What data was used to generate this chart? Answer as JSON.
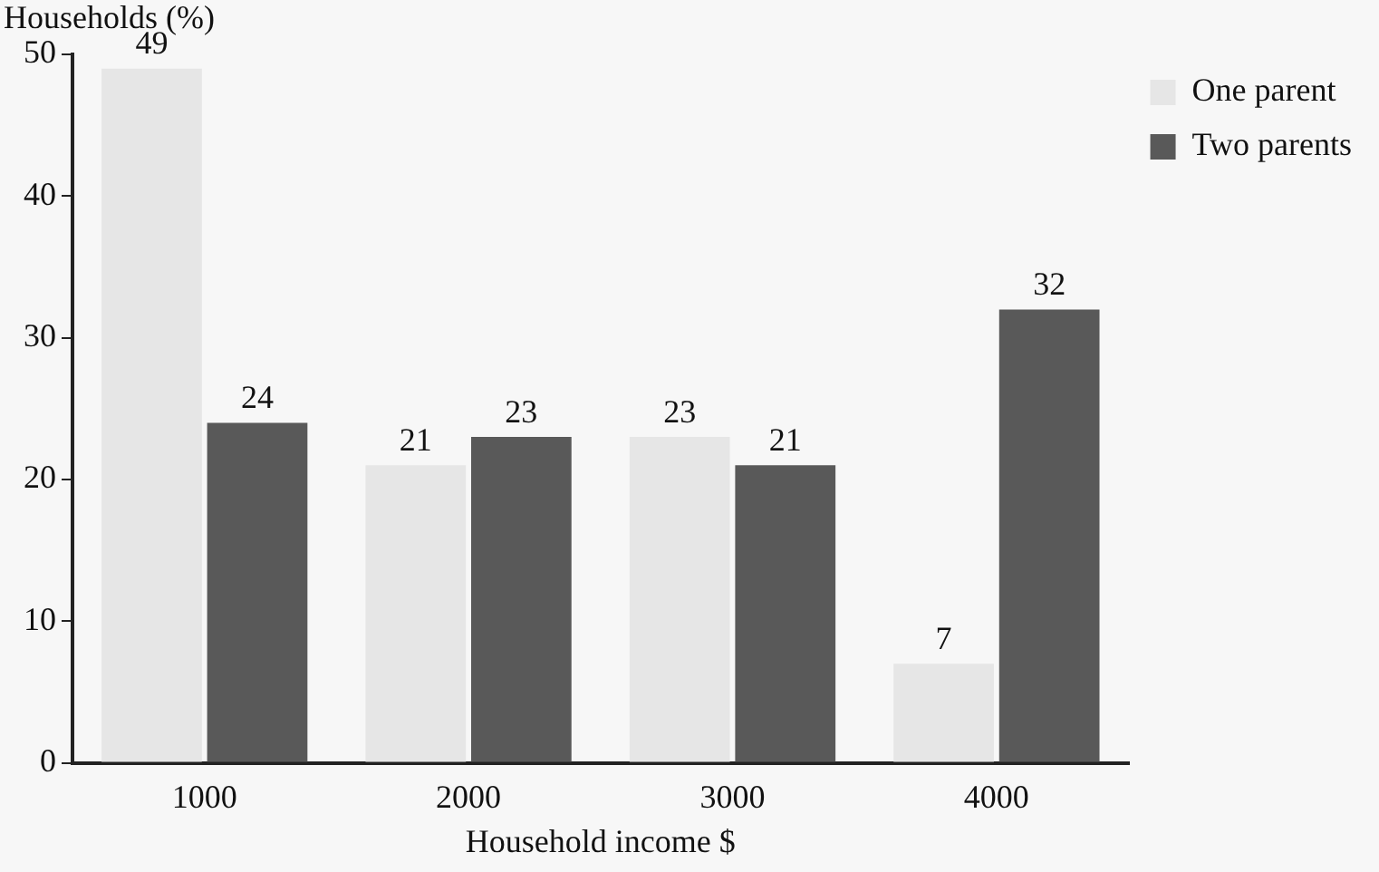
{
  "chart_data": {
    "type": "bar",
    "xlabel": "Household income $",
    "ylabel": "Households (%)",
    "categories": [
      "1000",
      "2000",
      "3000",
      "4000"
    ],
    "series": [
      {
        "name": "One parent",
        "color": "#e6e6e6",
        "values": [
          49,
          21,
          23,
          7
        ]
      },
      {
        "name": "Two parents",
        "color": "#595959",
        "values": [
          24,
          23,
          21,
          32
        ]
      }
    ],
    "ylim": [
      0,
      50
    ],
    "yticks": [
      0,
      10,
      20,
      30,
      40,
      50
    ],
    "grid": false,
    "legend": "top right",
    "data_labels": true
  }
}
